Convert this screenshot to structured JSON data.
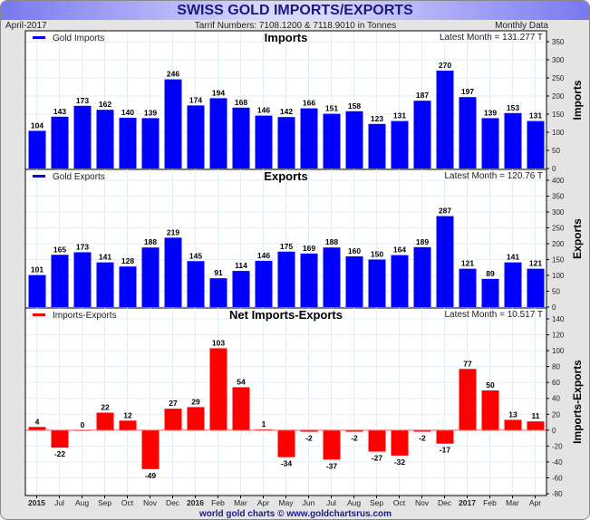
{
  "header": {
    "title": "SWISS GOLD IMPORTS/EXPORTS",
    "date": "April-2017",
    "tariff": "Tarrif Numbers: 7108.1200 & 7118.9010 in Tonnes",
    "frequency": "Monthly Data"
  },
  "footer": "world gold charts © www.goldchartsrus.com",
  "colors": {
    "imports": "#0000ff",
    "exports": "#0000ff",
    "net": "#ff0000"
  },
  "chart_data": [
    {
      "type": "bar",
      "title": "Imports",
      "legend": "Gold Imports",
      "latest": "Latest Month = 131.277 T",
      "ylabel": "Imports",
      "ylim": [
        0,
        350
      ],
      "yticks": [
        0,
        50,
        100,
        150,
        200,
        250,
        300,
        350
      ],
      "values": [
        104,
        143,
        173,
        162,
        140,
        139,
        246,
        174,
        194,
        168,
        146,
        142,
        166,
        151,
        158,
        123,
        131,
        187,
        270,
        197,
        139,
        153,
        131
      ]
    },
    {
      "type": "bar",
      "title": "Exports",
      "legend": "Gold Exports",
      "latest": "Latest Month = 120.76 T",
      "ylabel": "Exports",
      "ylim": [
        0,
        400
      ],
      "yticks": [
        0,
        50,
        100,
        150,
        200,
        250,
        300,
        350,
        400
      ],
      "values": [
        101,
        165,
        173,
        141,
        128,
        188,
        219,
        145,
        91,
        114,
        146,
        175,
        169,
        188,
        160,
        150,
        164,
        189,
        287,
        121,
        89,
        141,
        121
      ]
    },
    {
      "type": "bar",
      "title": "Net Imports-Exports",
      "legend": "Imports-Exports",
      "latest": "Latest Month = 10.517 T",
      "ylabel": "Imports-Exports",
      "ylim": [
        -80,
        140
      ],
      "yticks": [
        -80,
        -60,
        -40,
        -20,
        0,
        20,
        40,
        60,
        80,
        100,
        120,
        140
      ],
      "values": [
        4,
        -22,
        0,
        22,
        12,
        -49,
        27,
        29,
        103,
        54,
        1,
        -34,
        -2,
        -37,
        -2,
        -27,
        -32,
        -2,
        -17,
        77,
        50,
        13,
        11
      ]
    }
  ],
  "xlabels": [
    "2015",
    "Jul",
    "Aug",
    "Sep",
    "Oct",
    "Nov",
    "Dec",
    "2016",
    "Feb",
    "Mar",
    "Apr",
    "May",
    "Jun",
    "Jul",
    "Aug",
    "Sep",
    "Oct",
    "Nov",
    "Dec",
    "2017",
    "Feb",
    "Mar",
    "Apr"
  ],
  "xlabels_bold": [
    "2015",
    "2016",
    "2017"
  ]
}
